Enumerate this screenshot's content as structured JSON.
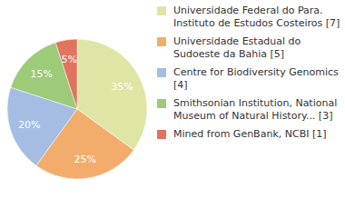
{
  "chart_data": {
    "type": "pie",
    "categories": [
      "Universidade Federal do Para. Instituto de Estudos Costeiros [7]",
      "Universidade Estadual do Sudoeste da Bahia [5]",
      "Centre for Biodiversity Genomics [4]",
      "Smithsonian Institution, National Museum of Natural History... [3]",
      "Mined from GenBank, NCBI [1]"
    ],
    "values": [
      35,
      25,
      20,
      15,
      5
    ],
    "value_labels": [
      "35%",
      "25%",
      "20%",
      "15%",
      "5%"
    ],
    "colors": [
      "#dfe5a5",
      "#f2ad6c",
      "#a5bde3",
      "#9ccb7a",
      "#e2735e"
    ],
    "data_labels": true,
    "legend": "right"
  }
}
